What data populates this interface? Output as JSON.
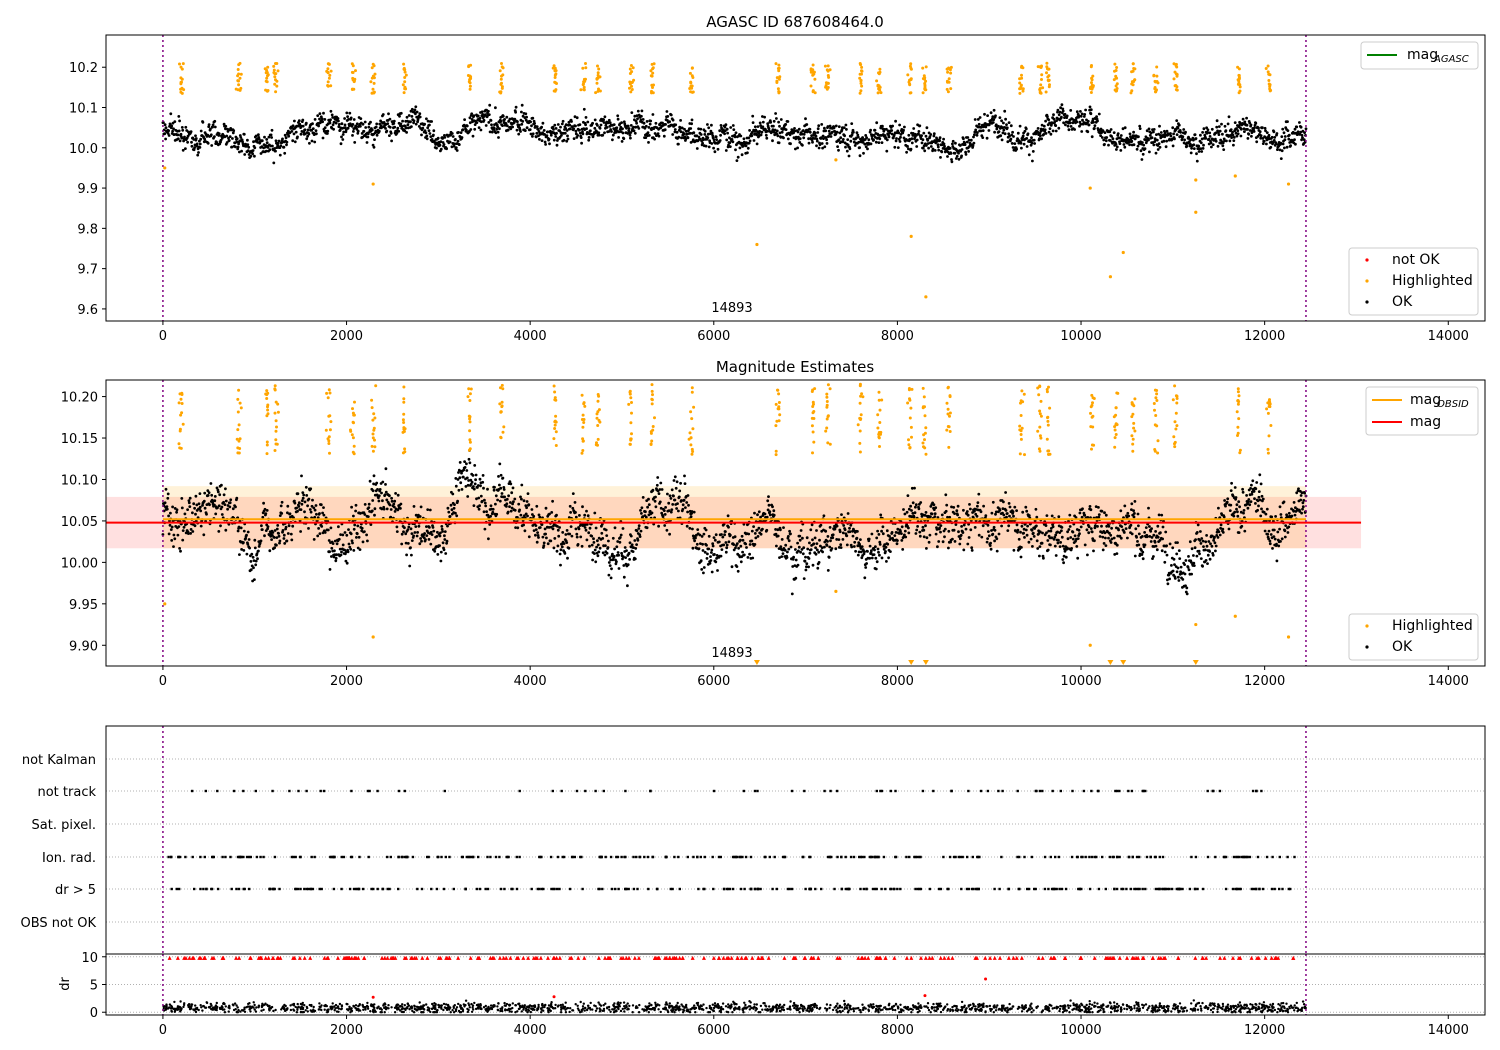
{
  "panels": {
    "top": {
      "title": "AGASC ID 687608464.0",
      "annotation": "14893",
      "legend_line": {
        "label": "mag",
        "sub": "AGASC",
        "color": "#008000"
      },
      "legend_points": [
        {
          "label": "not OK",
          "color": "#ff0000"
        },
        {
          "label": "Highlighted",
          "color": "#ffa500"
        },
        {
          "label": "OK",
          "color": "#000000"
        }
      ]
    },
    "middle": {
      "title": "Magnitude Estimates",
      "annotation": "14893",
      "legend_lines": [
        {
          "label": "mag",
          "sub": "OBSID",
          "color": "#ffa500"
        },
        {
          "label": "mag",
          "sub": "",
          "color": "#ff0000"
        }
      ],
      "legend_points": [
        {
          "label": "Highlighted",
          "color": "#ffa500"
        },
        {
          "label": "OK",
          "color": "#000000"
        }
      ]
    },
    "flags": {
      "labels": [
        "not Kalman",
        "not track",
        "Sat. pixel.",
        "Ion. rad.",
        "dr > 5",
        "OBS not OK"
      ]
    },
    "dr": {
      "ylabel": "dr"
    }
  },
  "chart_data": [
    {
      "type": "scatter",
      "title": "AGASC ID 687608464.0",
      "xlabel": "",
      "ylabel": "",
      "xlim": [
        -620,
        14400
      ],
      "ylim": [
        9.57,
        10.28
      ],
      "xticks": [
        0,
        2000,
        4000,
        6000,
        8000,
        10000,
        12000,
        14000
      ],
      "yticks": [
        9.6,
        9.7,
        9.8,
        9.9,
        10.0,
        10.1,
        10.2
      ],
      "vlines": [
        0,
        12450
      ],
      "series": [
        {
          "name": "OK",
          "color": "#000000",
          "baseline": 10.05,
          "spread": 0.04,
          "x_range": [
            0,
            12450
          ]
        },
        {
          "name": "Highlighted",
          "color": "#ffa500",
          "points": [
            [
              20,
              9.95
            ],
            [
              2290,
              9.91
            ],
            [
              6470,
              9.76
            ],
            [
              8150,
              9.78
            ],
            [
              8310,
              9.63
            ],
            [
              10100,
              9.9
            ],
            [
              10320,
              9.68
            ],
            [
              10460,
              9.74
            ],
            [
              11250,
              9.92
            ],
            [
              11250,
              9.84
            ],
            [
              11680,
              9.93
            ],
            [
              12260,
              9.91
            ],
            [
              7330,
              9.97
            ]
          ],
          "clusters": [
            200,
            830,
            1130,
            1230,
            1810,
            2070,
            2290,
            2630,
            3340,
            3690,
            4270,
            4580,
            4740,
            5100,
            5330,
            5760,
            6700,
            7080,
            7240,
            7600,
            7800,
            8140,
            8300,
            8560,
            9350,
            9550,
            9640,
            10120,
            10380,
            10570,
            10820,
            11030,
            11720,
            12050
          ]
        },
        {
          "name": "mag_AGASC",
          "color": "#008000",
          "value": 10.05
        }
      ],
      "legend_position": "top-right / bottom-right"
    },
    {
      "type": "scatter",
      "title": "Magnitude Estimates",
      "xlabel": "",
      "ylabel": "",
      "xlim": [
        -620,
        14400
      ],
      "ylim": [
        9.875,
        10.22
      ],
      "xticks": [
        0,
        2000,
        4000,
        6000,
        8000,
        10000,
        12000,
        14000
      ],
      "yticks": [
        9.9,
        9.95,
        10.0,
        10.05,
        10.1,
        10.15,
        10.2
      ],
      "vlines": [
        0,
        12450
      ],
      "series": [
        {
          "name": "OK",
          "color": "#000000",
          "baseline": 10.045,
          "spread": 0.035,
          "x_range": [
            0,
            12450
          ]
        },
        {
          "name": "Highlighted",
          "color": "#ffa500",
          "points": [
            [
              20,
              9.95
            ],
            [
              2290,
              9.91
            ],
            [
              7330,
              9.965
            ],
            [
              10100,
              9.9
            ],
            [
              11250,
              9.925
            ],
            [
              11680,
              9.935
            ],
            [
              12260,
              9.91
            ]
          ],
          "off_axis_below": [
            6470,
            8150,
            8310,
            10320,
            10460,
            11250
          ]
        },
        {
          "name": "mag_OBSID",
          "color": "#ffa500",
          "value": 10.052
        },
        {
          "name": "mag",
          "color": "#ff0000",
          "value": 10.048,
          "band": [
            10.017,
            10.079
          ]
        }
      ],
      "orange_band": [
        10.017,
        10.092
      ],
      "legend_position": "top-right / bottom-right"
    },
    {
      "type": "scatter",
      "title": "",
      "xlim": [
        -620,
        14400
      ],
      "categories": [
        "not Kalman",
        "not track",
        "Sat. pixel.",
        "Ion. rad.",
        "dr > 5",
        "OBS not OK"
      ],
      "flagged_rows": [
        "not track",
        "Ion. rad.",
        "dr > 5"
      ]
    },
    {
      "type": "scatter",
      "title": "",
      "ylabel": "dr",
      "xlim": [
        -620,
        14400
      ],
      "ylim": [
        -0.5,
        10.5
      ],
      "yticks": [
        0,
        5,
        10
      ],
      "xticks": [
        0,
        2000,
        4000,
        6000,
        8000,
        10000,
        12000,
        14000
      ],
      "series": [
        {
          "name": "dr",
          "color": "#000000",
          "baseline": 0.8,
          "spread": 0.7
        },
        {
          "name": "dr clipped",
          "color": "#ff0000",
          "value": 9.8
        },
        {
          "name": "dr outliers",
          "color": "#ff0000",
          "points": [
            [
              2290,
              2.7
            ],
            [
              4260,
              2.8
            ],
            [
              8300,
              3.0
            ],
            [
              8960,
              6.0
            ]
          ]
        }
      ]
    }
  ]
}
